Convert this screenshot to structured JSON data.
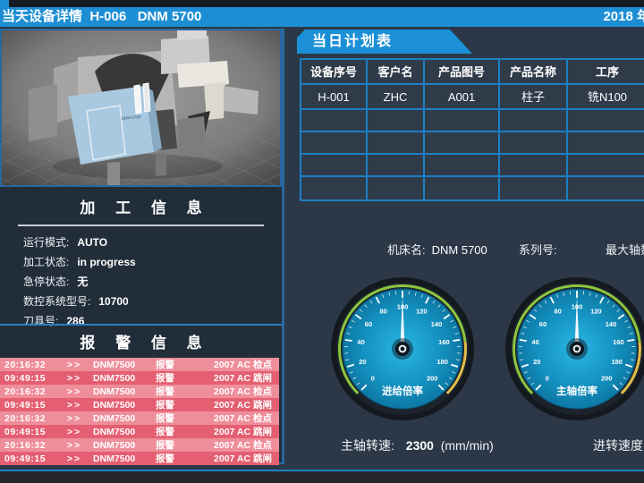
{
  "title_bar": {
    "title": "当天设备详情  H-006   DNM 5700",
    "date": "2018 年"
  },
  "left_panel": {
    "machine_model_label": "DNM 5700",
    "process_info": {
      "title": "加 工 信 息",
      "fields": [
        {
          "label": "运行模式:",
          "value": "AUTO"
        },
        {
          "label": "加工状态:",
          "value": "in progress"
        },
        {
          "label": "急停状态:",
          "value": "无"
        },
        {
          "label": "数控系统型号:",
          "value": "10700"
        },
        {
          "label": "刀具号:",
          "value": "286"
        }
      ]
    },
    "alarm_info": {
      "title": "报 警 信 息",
      "rows": [
        {
          "time": "20:16:32",
          "sep": ">>",
          "device": "DNM7500",
          "type": "报警",
          "message": "2007  AC 检点"
        },
        {
          "time": "09:49:15",
          "sep": ">>",
          "device": "DNM7500",
          "type": "报警",
          "message": "2007  AC 跳闸"
        },
        {
          "time": "20:16:32",
          "sep": ">>",
          "device": "DNM7500",
          "type": "报警",
          "message": "2007  AC 检点"
        },
        {
          "time": "09:49:15",
          "sep": ">>",
          "device": "DNM7500",
          "type": "报警",
          "message": "2007  AC 跳闸"
        },
        {
          "time": "20:16:32",
          "sep": ">>",
          "device": "DNM7500",
          "type": "报警",
          "message": "2007  AC 检点"
        },
        {
          "time": "09:49:15",
          "sep": ">>",
          "device": "DNM7500",
          "type": "报警",
          "message": "2007  AC 跳闸"
        },
        {
          "time": "20:16:32",
          "sep": ">>",
          "device": "DNM7500",
          "type": "报警",
          "message": "2007  AC 检点"
        },
        {
          "time": "09:49:15",
          "sep": ">>",
          "device": "DNM7500",
          "type": "报警",
          "message": "2007  AC 跳闸"
        }
      ]
    }
  },
  "plan_panel": {
    "banner": "当日计划表",
    "table": {
      "headers": [
        "设备序号",
        "客户名",
        "产品图号",
        "产品名称",
        "工序"
      ],
      "rows": [
        [
          "H-001",
          "ZHC",
          "A001",
          "柱子",
          "铣N100"
        ],
        [
          "",
          "",
          "",
          "",
          ""
        ],
        [
          "",
          "",
          "",
          "",
          ""
        ],
        [
          "",
          "",
          "",
          "",
          ""
        ],
        [
          "",
          "",
          "",
          "",
          ""
        ]
      ]
    },
    "machine_info": [
      {
        "label": "机床名:",
        "value": "DNM 5700"
      },
      {
        "label": "系列号:",
        "value": ""
      },
      {
        "label": "最大轴数",
        "value": ""
      }
    ]
  },
  "gauges": [
    {
      "name": "feed-override-gauge",
      "label": "进给倍率",
      "min": 0,
      "max": 200,
      "value": 100,
      "major_tick": 20,
      "minor_tick": 5,
      "arc_green": [
        0,
        162
      ],
      "arc_yellow": [
        162,
        200
      ]
    },
    {
      "name": "spindle-override-gauge",
      "label": "主轴倍率",
      "min": 0,
      "max": 200,
      "value": 100,
      "major_tick": 20,
      "minor_tick": 5,
      "arc_green": [
        0,
        162
      ],
      "arc_yellow": [
        162,
        200
      ]
    }
  ],
  "bottom_info": [
    {
      "label": "主轴转速:",
      "value": "2300",
      "unit": "(mm/min)"
    },
    {
      "label": "进转速度",
      "value": "",
      "unit": ""
    }
  ],
  "colors": {
    "accent_blue": "#1d8ed4",
    "table_border_blue": "#1d7fc4",
    "panel_bg": "#2c3847",
    "alarm_row_light": "#ef8e9b",
    "alarm_row_dark": "#e45f71",
    "gauge_arc_green": "#8cc63e",
    "gauge_arc_yellow": "#e2bd4a"
  }
}
